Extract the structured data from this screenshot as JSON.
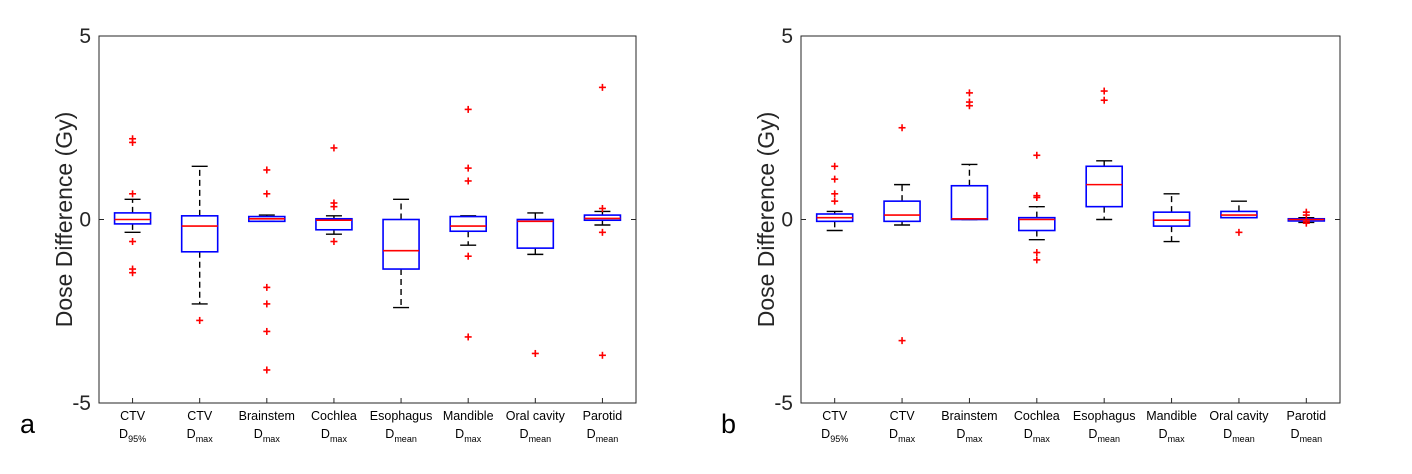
{
  "colors": {
    "box": "#0000ff",
    "median": "#ff0000",
    "whisker": "#000000",
    "outlier": "#ff0000",
    "axis": "#262626"
  },
  "chart_data": [
    {
      "type": "box",
      "panel_label": "a",
      "ylabel": "Dose Difference (Gy)",
      "ylim": [
        -5,
        5
      ],
      "yticks": [
        "5",
        "0",
        "-5"
      ],
      "categories": [
        {
          "name": "CTV",
          "metric": "D",
          "sub": "95%"
        },
        {
          "name": "CTV",
          "metric": "D",
          "sub": "max"
        },
        {
          "name": "Brainstem",
          "metric": "D",
          "sub": "max"
        },
        {
          "name": "Cochlea",
          "metric": "D",
          "sub": "max"
        },
        {
          "name": "Esophagus",
          "metric": "D",
          "sub": "mean"
        },
        {
          "name": "Mandible",
          "metric": "D",
          "sub": "max"
        },
        {
          "name": "Oral cavity",
          "metric": "D",
          "sub": "mean"
        },
        {
          "name": "Parotid",
          "metric": "D",
          "sub": "mean"
        }
      ],
      "boxes": [
        {
          "q1": -0.12,
          "median": 0.0,
          "q3": 0.18,
          "whisker_low": -0.35,
          "whisker_high": 0.55,
          "outliers": [
            2.2,
            2.1,
            0.7,
            -0.6,
            -1.35,
            -1.45
          ]
        },
        {
          "q1": -0.88,
          "median": -0.18,
          "q3": 0.1,
          "whisker_low": -2.3,
          "whisker_high": 1.45,
          "outliers": [
            -2.75
          ]
        },
        {
          "q1": -0.05,
          "median": 0.02,
          "q3": 0.08,
          "whisker_low": -0.05,
          "whisker_high": 0.12,
          "outliers": [
            1.35,
            0.7,
            -1.85,
            -2.3,
            -3.05,
            -4.1
          ]
        },
        {
          "q1": -0.28,
          "median": -0.02,
          "q3": 0.02,
          "whisker_low": -0.4,
          "whisker_high": 0.1,
          "outliers": [
            1.95,
            0.45,
            0.35,
            -0.6
          ]
        },
        {
          "q1": -1.35,
          "median": -0.85,
          "q3": 0.0,
          "whisker_low": -2.4,
          "whisker_high": 0.55,
          "outliers": []
        },
        {
          "q1": -0.32,
          "median": -0.18,
          "q3": 0.08,
          "whisker_low": -0.7,
          "whisker_high": 0.1,
          "outliers": [
            3.0,
            1.4,
            1.05,
            -1.0,
            -3.2
          ]
        },
        {
          "q1": -0.78,
          "median": -0.05,
          "q3": 0.0,
          "whisker_low": -0.95,
          "whisker_high": 0.18,
          "outliers": [
            -3.65
          ]
        },
        {
          "q1": -0.02,
          "median": 0.03,
          "q3": 0.12,
          "whisker_low": -0.15,
          "whisker_high": 0.22,
          "outliers": [
            3.6,
            0.3,
            -0.35,
            -3.7
          ]
        }
      ]
    },
    {
      "type": "box",
      "panel_label": "b",
      "ylabel": "Dose Difference (Gy)",
      "ylim": [
        -5,
        5
      ],
      "yticks": [
        "5",
        "0",
        "-5"
      ],
      "categories": [
        {
          "name": "CTV",
          "metric": "D",
          "sub": "95%"
        },
        {
          "name": "CTV",
          "metric": "D",
          "sub": "max"
        },
        {
          "name": "Brainstem",
          "metric": "D",
          "sub": "max"
        },
        {
          "name": "Cochlea",
          "metric": "D",
          "sub": "max"
        },
        {
          "name": "Esophagus",
          "metric": "D",
          "sub": "mean"
        },
        {
          "name": "Mandible",
          "metric": "D",
          "sub": "max"
        },
        {
          "name": "Oral cavity",
          "metric": "D",
          "sub": "mean"
        },
        {
          "name": "Parotid",
          "metric": "D",
          "sub": "mean"
        }
      ],
      "boxes": [
        {
          "q1": -0.05,
          "median": 0.05,
          "q3": 0.15,
          "whisker_low": -0.3,
          "whisker_high": 0.22,
          "outliers": [
            1.45,
            1.1,
            0.7,
            0.5
          ]
        },
        {
          "q1": -0.05,
          "median": 0.12,
          "q3": 0.5,
          "whisker_low": -0.15,
          "whisker_high": 0.95,
          "outliers": [
            2.5,
            -3.3
          ]
        },
        {
          "q1": 0.0,
          "median": 0.02,
          "q3": 0.92,
          "whisker_low": 0.0,
          "whisker_high": 1.5,
          "outliers": [
            3.45,
            3.2,
            3.1
          ]
        },
        {
          "q1": -0.3,
          "median": 0.0,
          "q3": 0.05,
          "whisker_low": -0.55,
          "whisker_high": 0.35,
          "outliers": [
            1.75,
            0.65,
            0.6,
            -0.9,
            -1.1
          ]
        },
        {
          "q1": 0.35,
          "median": 0.95,
          "q3": 1.45,
          "whisker_low": 0.0,
          "whisker_high": 1.6,
          "outliers": [
            3.5,
            3.25
          ]
        },
        {
          "q1": -0.18,
          "median": -0.02,
          "q3": 0.2,
          "whisker_low": -0.6,
          "whisker_high": 0.7,
          "outliers": []
        },
        {
          "q1": 0.05,
          "median": 0.12,
          "q3": 0.22,
          "whisker_low": 0.05,
          "whisker_high": 0.5,
          "outliers": [
            -0.35
          ]
        },
        {
          "q1": -0.04,
          "median": 0.0,
          "q3": 0.02,
          "whisker_low": -0.08,
          "whisker_high": 0.05,
          "outliers": [
            0.2,
            0.12,
            -0.05,
            -0.1
          ]
        }
      ]
    }
  ]
}
